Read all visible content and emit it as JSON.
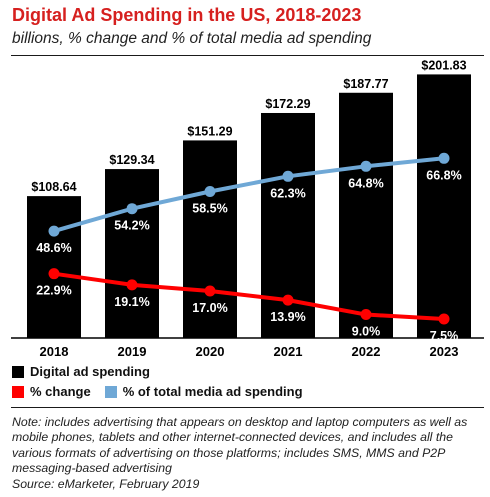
{
  "title": "Digital Ad Spending in the US, 2018-2023",
  "subtitle": "billions, % change and % of total media ad spending",
  "legend": {
    "spending": "Digital ad spending",
    "change": "% change",
    "share": "% of total media ad spending"
  },
  "note": "Note: includes advertising that appears on desktop and laptop computers as well as mobile phones, tablets and other internet-connected devices, and includes all the various formats of advertising on those platforms; includes SMS, MMS and P2P messaging-based advertising",
  "source": "Source: eMarketer, February 2019",
  "colors": {
    "title": "#d6201f",
    "bar": "#000000",
    "change_line": "#ff0000",
    "share_line": "#6fa8d6"
  },
  "chart_data": {
    "type": "bar",
    "categories": [
      "2018",
      "2019",
      "2020",
      "2021",
      "2022",
      "2023"
    ],
    "series": [
      {
        "name": "Digital ad spending",
        "type": "bar",
        "values": [
          108.64,
          129.34,
          151.29,
          172.29,
          187.77,
          201.83
        ],
        "labels": [
          "$108.64",
          "$129.34",
          "$151.29",
          "$172.29",
          "$187.77",
          "$201.83"
        ]
      },
      {
        "name": "% change",
        "type": "line",
        "values": [
          22.9,
          19.1,
          17.0,
          13.9,
          9.0,
          7.5
        ],
        "labels": [
          "22.9%",
          "19.1%",
          "17.0%",
          "13.9%",
          "9.0%",
          "7.5%"
        ]
      },
      {
        "name": "% of total media ad spending",
        "type": "line",
        "values": [
          48.6,
          54.2,
          58.5,
          62.3,
          64.8,
          66.8
        ],
        "labels": [
          "48.6%",
          "54.2%",
          "58.5%",
          "62.3%",
          "64.8%",
          "66.8%"
        ]
      }
    ],
    "legend_position": "bottom",
    "grid": false
  }
}
